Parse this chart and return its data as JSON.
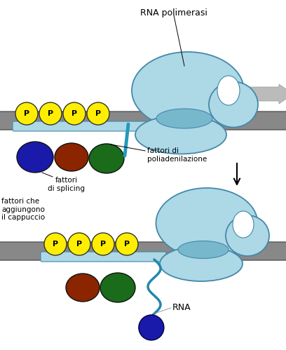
{
  "bg_color": "#ffffff",
  "dna_color": "#888888",
  "dna_outline": "#555555",
  "pol_body_color": "#add8e6",
  "pol_outline_color": "#4488aa",
  "pol_inner_color": "#7ab8cc",
  "rna_color": "#2288aa",
  "p_circle_color": "#ffee00",
  "blue_circle_color": "#1a1aaa",
  "brown_circle_color": "#8b2500",
  "green_circle_color": "#1a6b1a",
  "gray_arrow_color": "#aaaaaa",
  "label_rna_pol": "RNA polimerasi",
  "label_fattori_splicing": "fattori\ndi splicing",
  "label_fattori_polia": "fattori di\npoliadenilazione",
  "label_fattori_cappuccio": "fattori che\naggiungono\nil cappuccio",
  "label_rna": "RNA"
}
